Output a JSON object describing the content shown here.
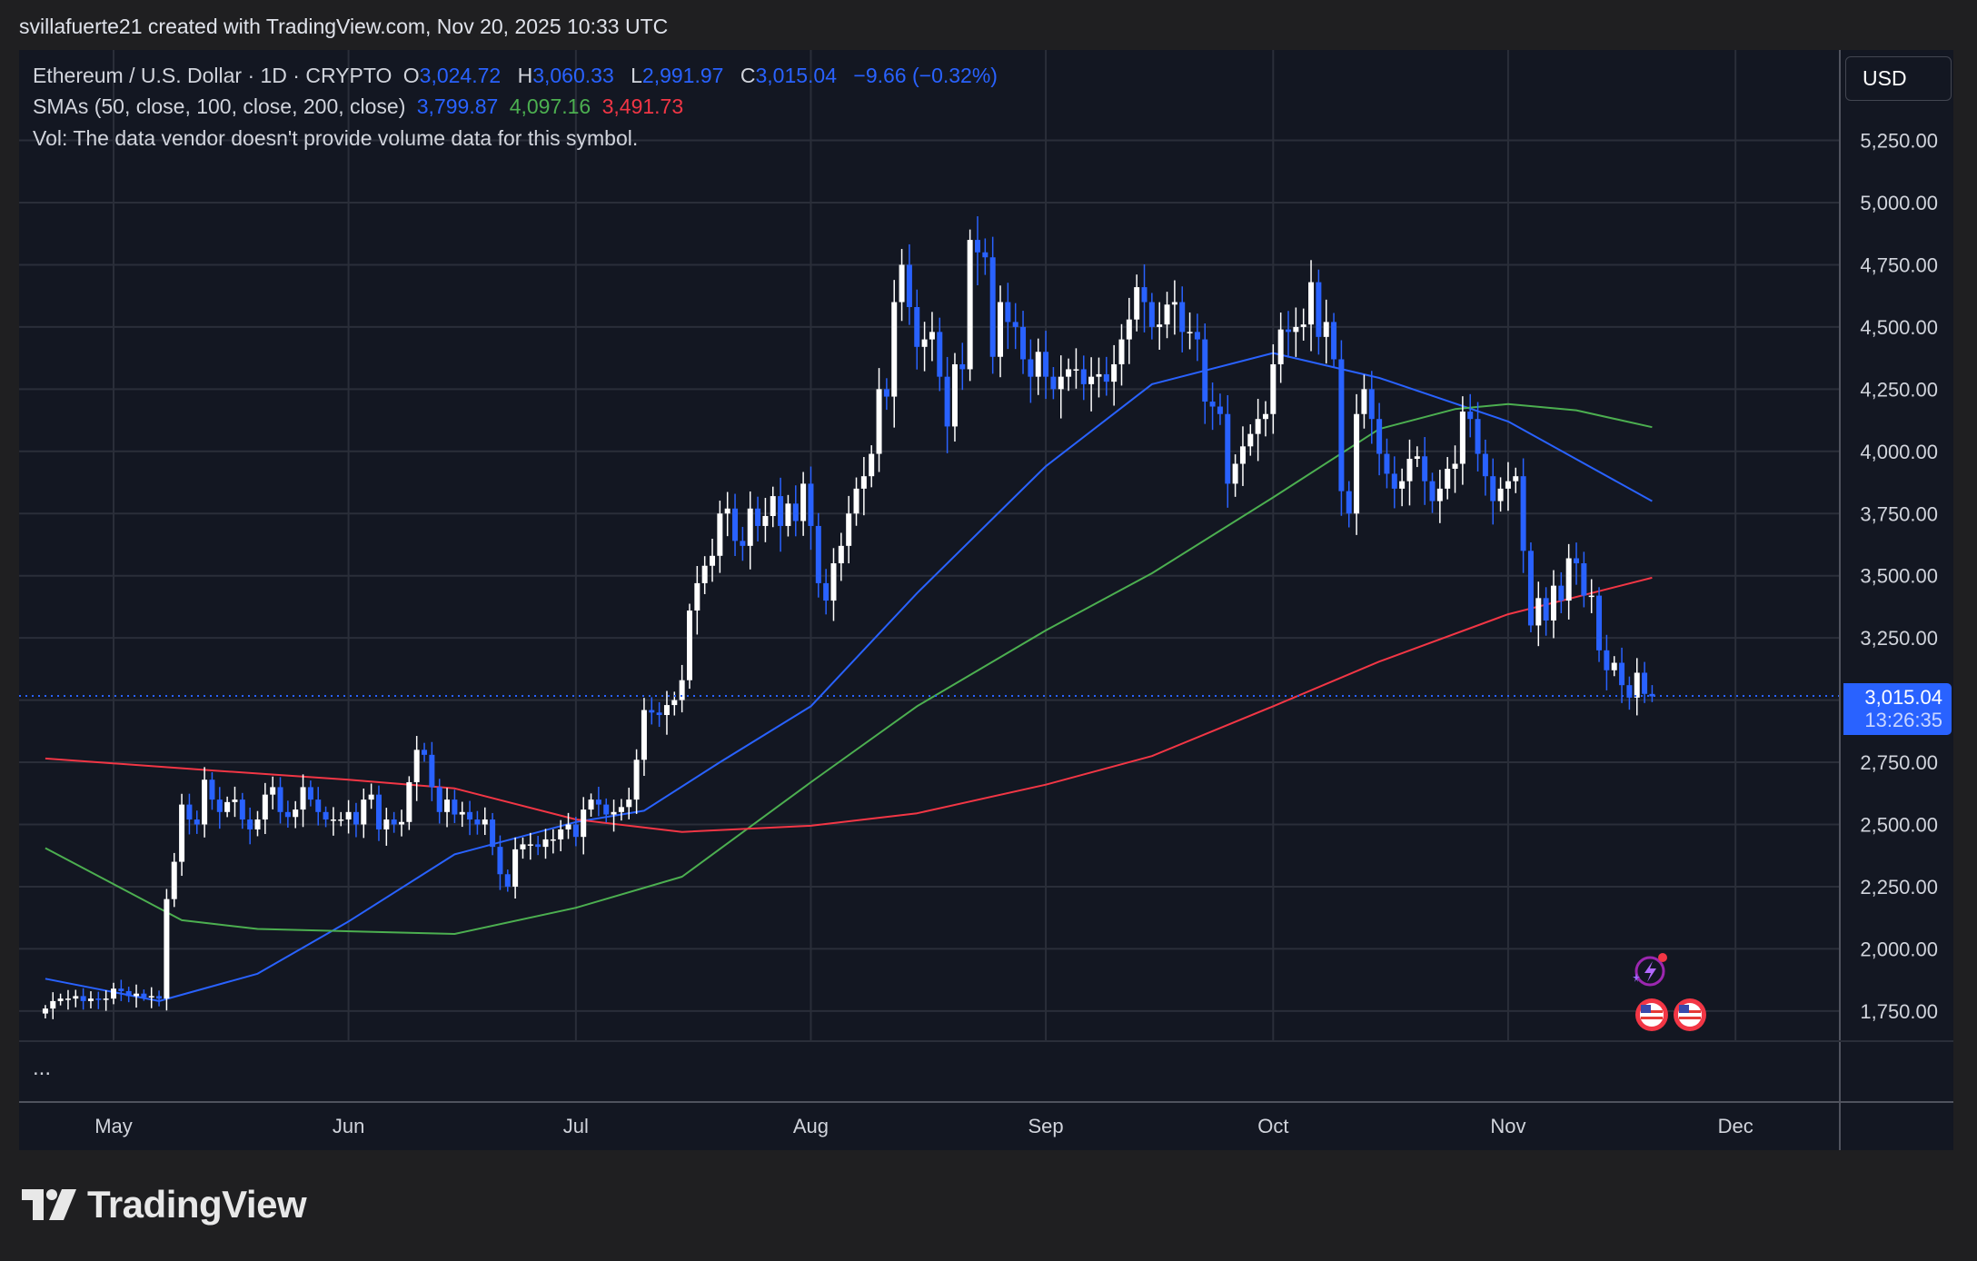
{
  "header": {
    "attribution": "svillafuerte21 created with TradingView.com, Nov 20, 2025 10:33 UTC"
  },
  "legend": {
    "symbol": "Ethereum / U.S. Dollar · 1D · CRYPTO",
    "open_label": "O",
    "open": "3,024.72",
    "high_label": "H",
    "high": "3,060.33",
    "low_label": "L",
    "low": "2,991.97",
    "close_label": "C",
    "close": "3,015.04",
    "change": "−9.66 (−0.32%)",
    "sma_label": "SMAs (50, close, 100, close, 200, close)",
    "sma50": "3,799.87",
    "sma100": "4,097.16",
    "sma200": "3,491.73",
    "vol": "Vol: The data vendor doesn't provide volume data for this symbol."
  },
  "currency_button": "USD",
  "more": "...",
  "price_label": {
    "price": "3,015.04",
    "countdown": "13:26:35"
  },
  "brand": "TradingView",
  "colors": {
    "up": "#ffffff",
    "down": "#2962ff",
    "sma50": "#2962ff",
    "sma100": "#4caf50",
    "sma200": "#f23645",
    "background": "#131722"
  },
  "chart_data": {
    "type": "candlestick",
    "title": "Ethereum / U.S. Dollar · 1D · CRYPTO",
    "ylim": [
      1650,
      5350
    ],
    "y_ticks": [
      "1,750.00",
      "2,000.00",
      "2,250.00",
      "2,500.00",
      "2,750.00",
      "3,000.00",
      "3,250.00",
      "3,500.00",
      "3,750.00",
      "4,000.00",
      "4,250.00",
      "4,500.00",
      "4,750.00",
      "5,000.00",
      "5,250.00"
    ],
    "y_tick_values": [
      1750,
      2000,
      2250,
      2500,
      2750,
      3000,
      3250,
      3500,
      3750,
      4000,
      4250,
      4500,
      4750,
      5000,
      5250
    ],
    "x_ticks": [
      {
        "label": "May",
        "date": "2025-05-01"
      },
      {
        "label": "Jun",
        "date": "2025-06-01"
      },
      {
        "label": "Jul",
        "date": "2025-07-01"
      },
      {
        "label": "Aug",
        "date": "2025-08-01"
      },
      {
        "label": "Sep",
        "date": "2025-09-01"
      },
      {
        "label": "Oct",
        "date": "2025-10-01"
      },
      {
        "label": "Nov",
        "date": "2025-11-01"
      },
      {
        "label": "Dec",
        "date": "2025-12-01"
      }
    ],
    "start_date": "2025-04-22",
    "closes": [
      1760,
      1790,
      1800,
      1800,
      1810,
      1790,
      1800,
      1795,
      1800,
      1840,
      1830,
      1810,
      1820,
      1805,
      1810,
      1800,
      2200,
      2350,
      2580,
      2520,
      2500,
      2680,
      2600,
      2550,
      2590,
      2600,
      2520,
      2480,
      2520,
      2620,
      2650,
      2550,
      2530,
      2560,
      2650,
      2600,
      2550,
      2520,
      2520,
      2520,
      2550,
      2500,
      2600,
      2620,
      2480,
      2520,
      2500,
      2510,
      2670,
      2800,
      2780,
      2650,
      2550,
      2600,
      2540,
      2550,
      2520,
      2500,
      2520,
      2410,
      2300,
      2250,
      2400,
      2420,
      2420,
      2410,
      2440,
      2440,
      2480,
      2500,
      2450,
      2560,
      2600,
      2580,
      2540,
      2550,
      2570,
      2600,
      2760,
      2960,
      2950,
      2940,
      2980,
      3000,
      3080,
      3360,
      3470,
      3540,
      3580,
      3750,
      3770,
      3640,
      3620,
      3770,
      3700,
      3740,
      3820,
      3700,
      3790,
      3720,
      3870,
      3700,
      3470,
      3400,
      3550,
      3620,
      3750,
      3850,
      3900,
      3990,
      4250,
      4220,
      4600,
      4750,
      4580,
      4420,
      4450,
      4480,
      4300,
      4100,
      4350,
      4330,
      4850,
      4800,
      4780,
      4380,
      4600,
      4520,
      4500,
      4370,
      4300,
      4400,
      4300,
      4250,
      4300,
      4330,
      4330,
      4270,
      4300,
      4310,
      4280,
      4350,
      4450,
      4530,
      4660,
      4600,
      4500,
      4510,
      4590,
      4600,
      4480,
      4480,
      4450,
      4200,
      4180,
      4150,
      3870,
      3950,
      4020,
      4070,
      4130,
      4150,
      4350,
      4490,
      4480,
      4500,
      4510,
      4680,
      4460,
      4520,
      4370,
      3840,
      3750,
      4150,
      4250,
      4130,
      3990,
      3910,
      3850,
      3880,
      3970,
      3980,
      3880,
      3800,
      3850,
      3930,
      3950,
      4160,
      4130,
      3990,
      3900,
      3800,
      3850,
      3880,
      3900,
      3600,
      3300,
      3410,
      3320,
      3460,
      3400,
      3570,
      3550,
      3420,
      3420,
      3200,
      3120,
      3150,
      3060,
      3010,
      3110,
      3025,
      3015.04
    ],
    "last_candle": {
      "open": 3024.72,
      "high": 3060.33,
      "low": 2991.97,
      "close": 3015.04
    },
    "series": [
      {
        "name": "SMA 50",
        "points": [
          [
            "2025-04-22",
            1880
          ],
          [
            "2025-05-07",
            1790
          ],
          [
            "2025-05-20",
            1900
          ],
          [
            "2025-06-01",
            2110
          ],
          [
            "2025-06-15",
            2380
          ],
          [
            "2025-07-01",
            2510
          ],
          [
            "2025-07-10",
            2555
          ],
          [
            "2025-07-20",
            2750
          ],
          [
            "2025-08-01",
            2975
          ],
          [
            "2025-08-15",
            3430
          ],
          [
            "2025-09-01",
            3940
          ],
          [
            "2025-09-15",
            4270
          ],
          [
            "2025-10-01",
            4395
          ],
          [
            "2025-10-15",
            4295
          ],
          [
            "2025-11-01",
            4120
          ],
          [
            "2025-11-20",
            3800
          ]
        ]
      },
      {
        "name": "SMA 100",
        "points": [
          [
            "2025-04-22",
            2405
          ],
          [
            "2025-05-10",
            2115
          ],
          [
            "2025-05-20",
            2080
          ],
          [
            "2025-06-15",
            2060
          ],
          [
            "2025-07-01",
            2165
          ],
          [
            "2025-07-15",
            2290
          ],
          [
            "2025-08-01",
            2670
          ],
          [
            "2025-08-15",
            2975
          ],
          [
            "2025-09-01",
            3280
          ],
          [
            "2025-09-15",
            3510
          ],
          [
            "2025-10-01",
            3815
          ],
          [
            "2025-10-15",
            4090
          ],
          [
            "2025-10-25",
            4170
          ],
          [
            "2025-11-01",
            4190
          ],
          [
            "2025-11-10",
            4165
          ],
          [
            "2025-11-20",
            4097
          ]
        ]
      },
      {
        "name": "SMA 200",
        "points": [
          [
            "2025-04-22",
            2765
          ],
          [
            "2025-05-15",
            2715
          ],
          [
            "2025-06-01",
            2680
          ],
          [
            "2025-06-15",
            2645
          ],
          [
            "2025-07-01",
            2520
          ],
          [
            "2025-07-15",
            2470
          ],
          [
            "2025-08-01",
            2495
          ],
          [
            "2025-08-15",
            2545
          ],
          [
            "2025-09-01",
            2660
          ],
          [
            "2025-09-15",
            2775
          ],
          [
            "2025-10-01",
            2975
          ],
          [
            "2025-10-15",
            3155
          ],
          [
            "2025-11-01",
            3345
          ],
          [
            "2025-11-20",
            3492
          ]
        ]
      }
    ],
    "grid": true
  }
}
